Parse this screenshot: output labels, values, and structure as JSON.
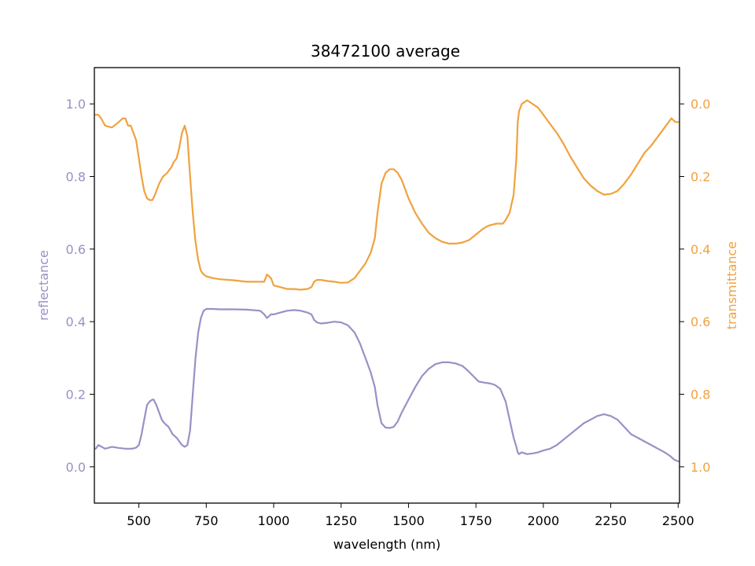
{
  "chart_data": {
    "type": "line",
    "title": "38472100 average",
    "xlabel": "wavelength (nm)",
    "ylabel_left": "reflectance",
    "ylabel_right": "transmittance",
    "xlim": [
      335,
      2505
    ],
    "ylim_left": [
      -0.1,
      1.1
    ],
    "ylim_right": [
      1.1,
      -0.1
    ],
    "right_axis_inverted": true,
    "grid": false,
    "x_ticks": [
      500,
      750,
      1000,
      1250,
      1500,
      1750,
      2000,
      2250,
      2500
    ],
    "x_tick_labels": [
      "500",
      "750",
      "1000",
      "1250",
      "1500",
      "1750",
      "2000",
      "2250",
      "2500"
    ],
    "y_left_ticks": [
      0.0,
      0.2,
      0.4,
      0.6,
      0.8,
      1.0
    ],
    "y_left_tick_labels": [
      "0.0",
      "0.2",
      "0.4",
      "0.6",
      "0.8",
      "1.0"
    ],
    "y_right_ticks": [
      0.0,
      0.2,
      0.4,
      0.6,
      0.8,
      1.0
    ],
    "y_right_tick_labels": [
      "0.0",
      "0.2",
      "0.4",
      "0.6",
      "0.8",
      "1.0"
    ],
    "colors": {
      "reflectance": "#9891c6",
      "transmittance": "#f0a23e"
    },
    "series": [
      {
        "axis": "left",
        "color": "#9891c6",
        "x": [
          340,
          350,
          375,
          400,
          425,
          450,
          475,
          490,
          500,
          510,
          520,
          530,
          540,
          550,
          555,
          565,
          575,
          585,
          595,
          610,
          625,
          640,
          650,
          660,
          670,
          680,
          690,
          700,
          710,
          720,
          730,
          740,
          750,
          775,
          800,
          850,
          900,
          950,
          965,
          975,
          990,
          1000,
          1025,
          1050,
          1075,
          1100,
          1125,
          1140,
          1150,
          1160,
          1175,
          1200,
          1225,
          1250,
          1275,
          1300,
          1320,
          1340,
          1360,
          1375,
          1385,
          1400,
          1415,
          1430,
          1445,
          1460,
          1475,
          1500,
          1525,
          1550,
          1575,
          1600,
          1625,
          1650,
          1675,
          1700,
          1720,
          1740,
          1760,
          1780,
          1800,
          1820,
          1840,
          1860,
          1875,
          1890,
          1900,
          1905,
          1910,
          1920,
          1940,
          1960,
          1980,
          2000,
          2025,
          2050,
          2075,
          2100,
          2125,
          2150,
          2175,
          2200,
          2225,
          2250,
          2275,
          2300,
          2325,
          2350,
          2375,
          2400,
          2425,
          2450,
          2470,
          2485,
          2500
        ],
        "values": [
          0.05,
          0.06,
          0.05,
          0.055,
          0.052,
          0.05,
          0.05,
          0.053,
          0.06,
          0.09,
          0.13,
          0.17,
          0.18,
          0.185,
          0.185,
          0.17,
          0.15,
          0.13,
          0.12,
          0.11,
          0.09,
          0.08,
          0.07,
          0.06,
          0.055,
          0.06,
          0.1,
          0.2,
          0.3,
          0.37,
          0.41,
          0.43,
          0.435,
          0.435,
          0.434,
          0.434,
          0.433,
          0.43,
          0.42,
          0.41,
          0.42,
          0.42,
          0.425,
          0.43,
          0.432,
          0.43,
          0.425,
          0.42,
          0.405,
          0.398,
          0.395,
          0.397,
          0.4,
          0.398,
          0.39,
          0.37,
          0.34,
          0.3,
          0.26,
          0.22,
          0.17,
          0.12,
          0.108,
          0.107,
          0.11,
          0.125,
          0.15,
          0.185,
          0.22,
          0.25,
          0.27,
          0.283,
          0.288,
          0.288,
          0.285,
          0.278,
          0.265,
          0.25,
          0.235,
          0.232,
          0.23,
          0.226,
          0.215,
          0.18,
          0.13,
          0.08,
          0.055,
          0.04,
          0.035,
          0.04,
          0.035,
          0.037,
          0.04,
          0.045,
          0.05,
          0.06,
          0.075,
          0.09,
          0.105,
          0.12,
          0.13,
          0.14,
          0.145,
          0.14,
          0.13,
          0.11,
          0.09,
          0.08,
          0.07,
          0.06,
          0.05,
          0.04,
          0.03,
          0.02,
          0.015
        ]
      },
      {
        "axis": "right",
        "color": "#f0a23e",
        "x": [
          340,
          350,
          360,
          375,
          400,
          425,
          440,
          450,
          460,
          470,
          480,
          490,
          500,
          510,
          520,
          530,
          540,
          550,
          560,
          575,
          590,
          605,
          620,
          630,
          640,
          650,
          660,
          670,
          680,
          690,
          700,
          710,
          720,
          730,
          740,
          750,
          775,
          800,
          850,
          900,
          950,
          965,
          975,
          990,
          1000,
          1025,
          1050,
          1075,
          1100,
          1125,
          1140,
          1150,
          1160,
          1175,
          1200,
          1225,
          1250,
          1275,
          1300,
          1320,
          1340,
          1360,
          1375,
          1385,
          1400,
          1415,
          1430,
          1445,
          1460,
          1475,
          1500,
          1525,
          1550,
          1575,
          1600,
          1625,
          1650,
          1675,
          1700,
          1725,
          1750,
          1775,
          1790,
          1800,
          1825,
          1850,
          1860,
          1875,
          1890,
          1900,
          1905,
          1910,
          1920,
          1940,
          1960,
          1980,
          2000,
          2025,
          2050,
          2075,
          2100,
          2125,
          2150,
          2175,
          2200,
          2225,
          2250,
          2275,
          2300,
          2325,
          2350,
          2375,
          2400,
          2425,
          2450,
          2475,
          2490,
          2500
        ],
        "values": [
          0.03,
          0.03,
          0.04,
          0.06,
          0.065,
          0.05,
          0.04,
          0.04,
          0.06,
          0.06,
          0.08,
          0.1,
          0.15,
          0.2,
          0.24,
          0.26,
          0.265,
          0.265,
          0.25,
          0.22,
          0.2,
          0.19,
          0.175,
          0.16,
          0.15,
          0.12,
          0.08,
          0.06,
          0.09,
          0.2,
          0.3,
          0.38,
          0.43,
          0.46,
          0.47,
          0.475,
          0.48,
          0.483,
          0.486,
          0.49,
          0.49,
          0.49,
          0.47,
          0.48,
          0.5,
          0.505,
          0.51,
          0.51,
          0.512,
          0.51,
          0.505,
          0.49,
          0.485,
          0.485,
          0.488,
          0.49,
          0.493,
          0.492,
          0.48,
          0.46,
          0.44,
          0.41,
          0.37,
          0.3,
          0.22,
          0.19,
          0.18,
          0.18,
          0.19,
          0.21,
          0.26,
          0.3,
          0.33,
          0.355,
          0.37,
          0.38,
          0.385,
          0.385,
          0.382,
          0.375,
          0.36,
          0.345,
          0.338,
          0.335,
          0.33,
          0.33,
          0.32,
          0.3,
          0.25,
          0.15,
          0.05,
          0.02,
          0.0,
          -0.01,
          0.0,
          0.01,
          0.03,
          0.055,
          0.08,
          0.11,
          0.145,
          0.175,
          0.205,
          0.225,
          0.24,
          0.25,
          0.248,
          0.24,
          0.22,
          0.195,
          0.165,
          0.135,
          0.115,
          0.09,
          0.065,
          0.04,
          0.05,
          0.05
        ]
      }
    ]
  }
}
